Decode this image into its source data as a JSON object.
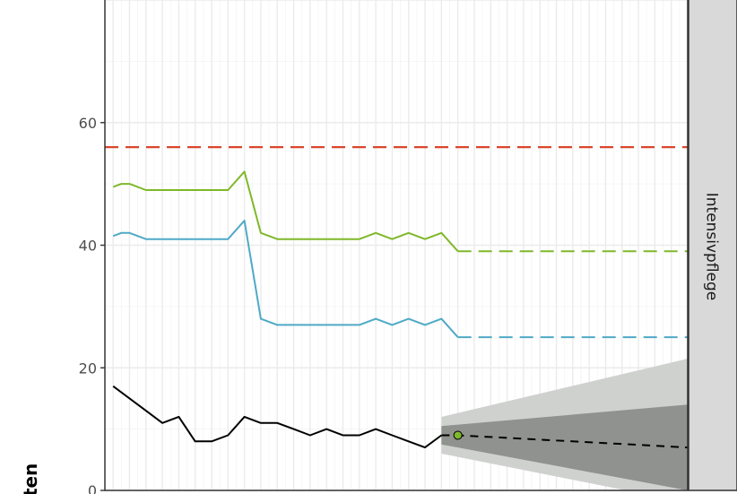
{
  "chart_data": {
    "type": "line",
    "title": "",
    "ylabel": "ten",
    "facet_label": "Intensivpflege",
    "x": [
      -21,
      -20,
      -19,
      -18,
      -17,
      -16,
      -15,
      -14,
      -13,
      -12,
      -11,
      -10,
      -9,
      -8,
      -7,
      -6,
      -5,
      -4,
      -3,
      -2,
      -1,
      0,
      1,
      2,
      3,
      4,
      5,
      6,
      7,
      8,
      9,
      10,
      11,
      12,
      13
    ],
    "xlim": [
      -21.5,
      14
    ],
    "ylim": [
      0,
      80
    ],
    "yticks": [
      0,
      20,
      40,
      60
    ],
    "ytick_labels": [
      "0",
      "20",
      "40",
      "60"
    ],
    "grid": true,
    "colors": {
      "upper_line": "#7fb82a",
      "mid_line": "#4fa9c6",
      "reference": "#d9462c",
      "observed": "#000000",
      "point": "#7fb82a",
      "band_outer": "#cfd1cf",
      "band_inner": "#8f928f",
      "strip_bg": "#d9d9d9"
    },
    "reference_line": {
      "y": 56,
      "style": "dashed",
      "color": "#d9462c"
    },
    "series": [
      {
        "x": [
          -21,
          -20.5,
          -20,
          -19,
          -18,
          -17,
          -16,
          -15,
          -14,
          -13,
          -12,
          -11,
          -10,
          -9,
          -8,
          -7,
          -6,
          -5,
          -4,
          -3,
          -2,
          -1,
          0
        ],
        "values": [
          49.5,
          50,
          50,
          49,
          49,
          49,
          49,
          49,
          49,
          52,
          42,
          41,
          41,
          41,
          41,
          41,
          41,
          42,
          41,
          42,
          41,
          42,
          39
        ],
        "style": "solid",
        "color": "#7fb82a"
      },
      {
        "x": [
          0,
          14
        ],
        "values": [
          39,
          39
        ],
        "style": "dashed",
        "color": "#7fb82a"
      },
      {
        "x": [
          -21,
          -20.5,
          -20,
          -19,
          -18,
          -17,
          -16,
          -15,
          -14,
          -13,
          -12,
          -11,
          -10,
          -9,
          -8,
          -7,
          -6,
          -5,
          -4,
          -3,
          -2,
          -1,
          0
        ],
        "values": [
          41.5,
          42,
          42,
          41,
          41,
          41,
          41,
          41,
          41,
          44,
          28,
          27,
          27,
          27,
          27,
          27,
          27,
          28,
          27,
          28,
          27,
          28,
          25
        ],
        "style": "solid",
        "color": "#4fa9c6"
      },
      {
        "x": [
          0,
          14
        ],
        "values": [
          25,
          25
        ],
        "style": "dashed",
        "color": "#4fa9c6"
      },
      {
        "x": [
          -21,
          -20,
          -19,
          -18,
          -17,
          -16,
          -15,
          -14,
          -13,
          -12,
          -11,
          -10,
          -9,
          -8,
          -7,
          -6,
          -5,
          -4,
          -3,
          -2,
          -1
        ],
        "values": [
          17,
          15,
          13,
          11,
          12,
          8,
          8,
          9,
          12,
          11,
          11,
          10,
          9,
          10,
          9,
          9,
          10,
          9,
          8,
          7,
          9
        ],
        "style": "solid",
        "color": "#000000"
      },
      {
        "x": [
          -1,
          0,
          14
        ],
        "values": [
          9,
          9,
          7
        ],
        "style": "dashed",
        "color": "#000000"
      }
    ],
    "current_point": {
      "x": 0,
      "y": 9,
      "color": "#7fb82a"
    },
    "forecast_band_outer": {
      "x": [
        -1,
        14
      ],
      "lower": [
        6,
        -2
      ],
      "upper": [
        12,
        21.5
      ]
    },
    "forecast_band_inner": {
      "x": [
        -1,
        14
      ],
      "lower": [
        7.5,
        0
      ],
      "upper": [
        10.5,
        14
      ]
    }
  }
}
